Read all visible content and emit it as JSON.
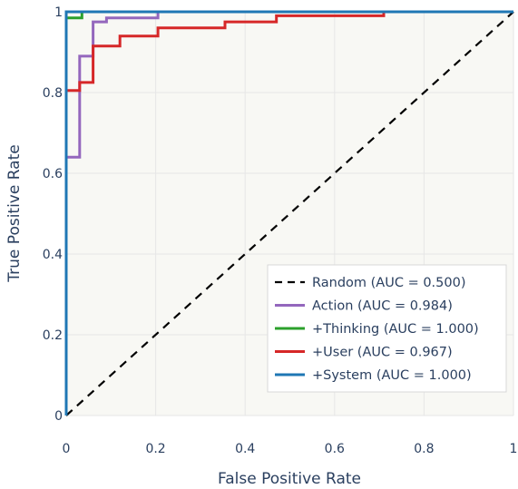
{
  "chart_data": {
    "type": "line",
    "title": "",
    "xlabel": "False Positive Rate",
    "ylabel": "True Positive Rate",
    "xlim": [
      0,
      1
    ],
    "ylim": [
      0,
      1
    ],
    "xticks": [
      0,
      0.2,
      0.4,
      0.6,
      0.8,
      1
    ],
    "yticks": [
      0,
      0.2,
      0.4,
      0.6,
      0.8,
      1
    ],
    "xtick_labels": [
      "0",
      "0.2",
      "0.4",
      "0.6",
      "0.8",
      "1"
    ],
    "ytick_labels": [
      "0",
      "0.2",
      "0.4",
      "0.6",
      "0.8",
      "1"
    ],
    "grid": true,
    "legend_position": "bottom-right",
    "series": [
      {
        "name": "Random (AUC = 0.500)",
        "color": "#000000",
        "dash": true,
        "x": [
          0,
          1
        ],
        "y": [
          0,
          1
        ]
      },
      {
        "name": "Action (AUC = 0.984)",
        "color": "#9467bd",
        "dash": false,
        "x": [
          0,
          0,
          0.03,
          0.03,
          0.06,
          0.06,
          0.09,
          0.09,
          0.205,
          0.205,
          1
        ],
        "y": [
          0,
          0.64,
          0.64,
          0.89,
          0.89,
          0.975,
          0.975,
          0.985,
          0.985,
          1,
          1
        ]
      },
      {
        "name": "+Thinking (AUC = 1.000)",
        "color": "#2ca02c",
        "dash": false,
        "x": [
          0,
          0,
          0,
          0.035,
          0.035,
          1
        ],
        "y": [
          0,
          0.64,
          0.985,
          0.985,
          1,
          1
        ]
      },
      {
        "name": "+User (AUC = 0.967)",
        "color": "#d62728",
        "dash": false,
        "x": [
          0,
          0,
          0.03,
          0.03,
          0.06,
          0.06,
          0.12,
          0.12,
          0.205,
          0.205,
          0.355,
          0.355,
          0.47,
          0.47,
          0.71,
          0.71,
          1
        ],
        "y": [
          0,
          0.805,
          0.805,
          0.825,
          0.825,
          0.915,
          0.915,
          0.94,
          0.94,
          0.96,
          0.96,
          0.975,
          0.975,
          0.99,
          0.99,
          1,
          1
        ]
      },
      {
        "name": "+System (AUC = 1.000)",
        "color": "#1f77b4",
        "dash": false,
        "x": [
          0,
          0,
          1
        ],
        "y": [
          0,
          1,
          1
        ]
      }
    ]
  }
}
